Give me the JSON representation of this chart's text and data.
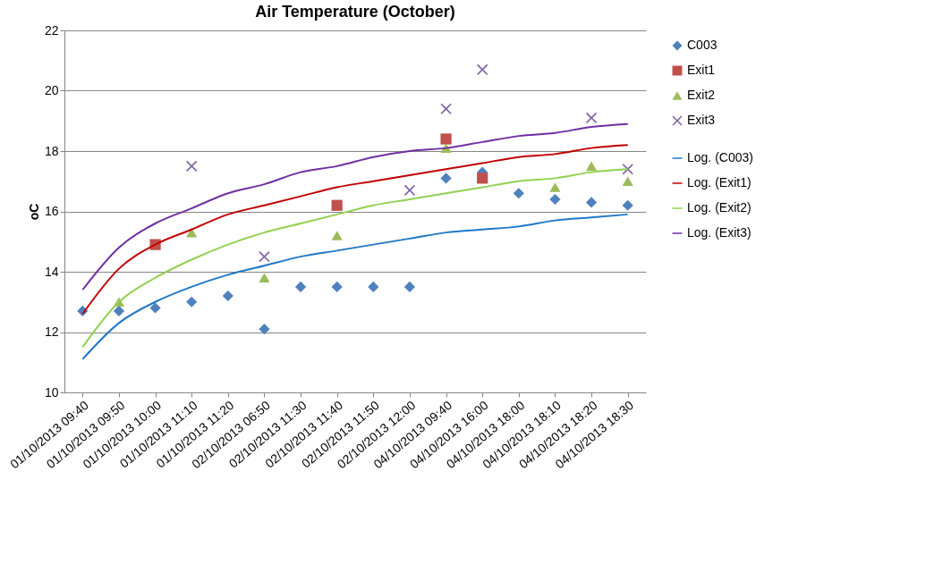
{
  "chart_data": {
    "type": "scatter",
    "title": "Air Temperature (October)",
    "ylabel": "oC",
    "categories": [
      "01/10/2013  09:40",
      "01/10/2013  09:50",
      "01/10/2013  10:00",
      "01/10/2013  11:10",
      "01/10/2013  11:20",
      "02/10/2013  06:50",
      "02/10/2013  11:30",
      "02/10/2013  11:40",
      "02/10/2013  11:50",
      "02/10/2013  12:00",
      "04/10/2013  09:40",
      "04/10/2013  16:00",
      "04/10/2013  18:00",
      "04/10/2013  18:10",
      "04/10/2013  18:20",
      "04/10/2013  18:30"
    ],
    "ylim": [
      10,
      22
    ],
    "yticks": [
      10,
      12,
      14,
      16,
      18,
      20,
      22
    ],
    "grid": "y",
    "legend": "right",
    "series": [
      {
        "name": "C003",
        "type": "scatter",
        "marker": "diamond",
        "color": "#4f81bd",
        "values": [
          12.7,
          12.7,
          12.8,
          13.0,
          13.2,
          12.1,
          13.5,
          13.5,
          13.5,
          13.5,
          17.1,
          17.3,
          16.6,
          16.4,
          16.3,
          16.2
        ]
      },
      {
        "name": "Exit1",
        "type": "scatter",
        "marker": "square",
        "color": "#c0504d",
        "values": [
          null,
          null,
          14.9,
          null,
          null,
          null,
          null,
          16.2,
          null,
          null,
          18.4,
          17.1,
          null,
          null,
          null,
          null
        ]
      },
      {
        "name": "Exit2",
        "type": "scatter",
        "marker": "triangle",
        "color": "#9bbb59",
        "values": [
          null,
          13.0,
          null,
          15.3,
          null,
          13.8,
          null,
          15.2,
          null,
          null,
          18.1,
          null,
          null,
          16.8,
          17.5,
          17.0
        ]
      },
      {
        "name": "Exit3",
        "type": "scatter",
        "marker": "cross",
        "color": "#8064a2",
        "values": [
          null,
          null,
          null,
          17.5,
          null,
          14.5,
          null,
          null,
          null,
          16.7,
          19.4,
          20.7,
          null,
          null,
          19.1,
          17.4
        ]
      },
      {
        "name": "Log. (C003)",
        "type": "line",
        "marker": "none",
        "color": "#1f78c8",
        "values": [
          11.1,
          12.3,
          13.0,
          13.5,
          13.9,
          14.2,
          14.5,
          14.7,
          14.9,
          15.1,
          15.3,
          15.4,
          15.5,
          15.7,
          15.8,
          15.9
        ]
      },
      {
        "name": "Log. (Exit1)",
        "type": "line",
        "marker": "none",
        "color": "#c00000",
        "values": [
          12.6,
          14.1,
          14.9,
          15.4,
          15.9,
          16.2,
          16.5,
          16.8,
          17.0,
          17.2,
          17.4,
          17.6,
          17.8,
          17.9,
          18.1,
          18.2
        ]
      },
      {
        "name": "Log. (Exit2)",
        "type": "line",
        "marker": "none",
        "color": "#92d050",
        "values": [
          11.5,
          13.0,
          13.8,
          14.4,
          14.9,
          15.3,
          15.6,
          15.9,
          16.2,
          16.4,
          16.6,
          16.8,
          17.0,
          17.1,
          17.3,
          17.4
        ]
      },
      {
        "name": "Log. (Exit3)",
        "type": "line",
        "marker": "none",
        "color": "#7030a0",
        "values": [
          13.4,
          14.8,
          15.6,
          16.1,
          16.6,
          16.9,
          17.3,
          17.5,
          17.8,
          18.0,
          18.1,
          18.3,
          18.5,
          18.6,
          18.8,
          18.9
        ]
      }
    ]
  }
}
